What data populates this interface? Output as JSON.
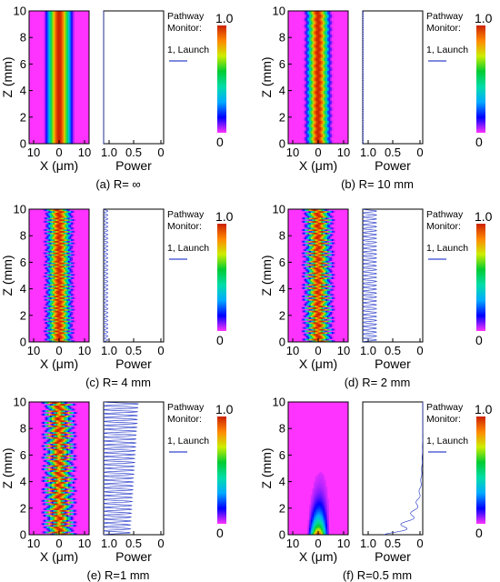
{
  "colors": {
    "pathway_line": "#3344cc",
    "background_field": "#ff33ff",
    "colormap": [
      "#ff33ff",
      "#0000ff",
      "#00aaff",
      "#00ddaa",
      "#00cc33",
      "#ccee00",
      "#ff8800",
      "#cc2200"
    ]
  },
  "chart_data": [
    {
      "type": "heatmap",
      "panel": "a",
      "caption": "(a) R= ∞",
      "bend_radius_mm": null,
      "field_plot": {
        "xlabel": "X (μm)",
        "ylabel": "Z (mm)",
        "xticks": [
          "10",
          "0",
          "10"
        ],
        "xlim": [
          -10,
          10
        ],
        "yticks": [
          "0",
          "2",
          "4",
          "6",
          "8",
          "10"
        ],
        "ylim": [
          0,
          10
        ],
        "mode_half_width_um": 5.5,
        "oscillation_amplitude_um": 0,
        "oscillation_periods": 0,
        "decay_length_mm": null
      },
      "power_plot": {
        "xlabel": "Power",
        "xticks": [
          "1.0",
          "0.5",
          "0"
        ],
        "xlim": [
          1.0,
          0
        ],
        "series": [
          {
            "name": "1, Launch",
            "power_max": 1.0,
            "power_min": 1.0,
            "oscillation_periods": 0,
            "decay_length_mm": null
          }
        ]
      },
      "legend": {
        "title": [
          "Pathway",
          "Monitor:"
        ],
        "entry": "1, Launch"
      },
      "colorbar": {
        "max_label": "1.0",
        "min_label": "0",
        "range": [
          0,
          1
        ]
      }
    },
    {
      "type": "heatmap",
      "panel": "b",
      "caption": "(b) R= 10 mm",
      "bend_radius_mm": 10,
      "field_plot": {
        "xlabel": "X (μm)",
        "ylabel": "Z (mm)",
        "xticks": [
          "10",
          "0",
          "10"
        ],
        "xlim": [
          -10,
          10
        ],
        "yticks": [
          "0",
          "2",
          "4",
          "6",
          "8",
          "10"
        ],
        "ylim": [
          0,
          10
        ],
        "mode_half_width_um": 5.0,
        "oscillation_amplitude_um": 0.3,
        "oscillation_periods": 60,
        "decay_length_mm": null
      },
      "power_plot": {
        "xlabel": "Power",
        "xticks": [
          "1.0",
          "0.5",
          "0"
        ],
        "xlim": [
          1.0,
          0
        ],
        "series": [
          {
            "name": "1, Launch",
            "power_max": 1.0,
            "power_min": 0.99,
            "oscillation_periods": 60,
            "decay_length_mm": null
          }
        ]
      },
      "legend": {
        "title": [
          "Pathway",
          "Monitor:"
        ],
        "entry": "1, Launch"
      },
      "colorbar": {
        "max_label": "1.0",
        "min_label": "0",
        "range": [
          0,
          1
        ]
      }
    },
    {
      "type": "heatmap",
      "panel": "c",
      "caption": "(c) R= 4 mm",
      "bend_radius_mm": 4,
      "field_plot": {
        "xlabel": "X (μm)",
        "ylabel": "Z (mm)",
        "xticks": [
          "10",
          "0",
          "10"
        ],
        "xlim": [
          -10,
          10
        ],
        "yticks": [
          "0",
          "2",
          "4",
          "6",
          "8",
          "10"
        ],
        "ylim": [
          0,
          10
        ],
        "mode_half_width_um": 5.0,
        "oscillation_amplitude_um": 0.8,
        "oscillation_periods": 34,
        "decay_length_mm": null
      },
      "power_plot": {
        "xlabel": "Power",
        "xticks": [
          "1.0",
          "0.5",
          "0"
        ],
        "xlim": [
          1.0,
          0
        ],
        "series": [
          {
            "name": "1, Launch",
            "power_max": 1.0,
            "power_min": 0.93,
            "oscillation_periods": 34,
            "decay_length_mm": null
          }
        ]
      },
      "legend": {
        "title": [
          "Pathway",
          "Monitor:"
        ],
        "entry": "1, Launch"
      },
      "colorbar": {
        "max_label": "1.0",
        "min_label": "0",
        "range": [
          0,
          1
        ]
      }
    },
    {
      "type": "heatmap",
      "panel": "d",
      "caption": "(d) R= 2 mm",
      "bend_radius_mm": 2,
      "field_plot": {
        "xlabel": "X (μm)",
        "ylabel": "Z (mm)",
        "xticks": [
          "10",
          "0",
          "10"
        ],
        "xlim": [
          -10,
          10
        ],
        "yticks": [
          "0",
          "2",
          "4",
          "6",
          "8",
          "10"
        ],
        "ylim": [
          0,
          10
        ],
        "mode_half_width_um": 5.0,
        "oscillation_amplitude_um": 1.2,
        "oscillation_periods": 34,
        "decay_length_mm": null
      },
      "power_plot": {
        "xlabel": "Power",
        "xticks": [
          "1.0",
          "0.5",
          "0"
        ],
        "xlim": [
          1.0,
          0
        ],
        "series": [
          {
            "name": "1, Launch",
            "power_max": 1.0,
            "power_min": 0.77,
            "oscillation_periods": 34,
            "decay_length_mm": null
          }
        ]
      },
      "legend": {
        "title": [
          "Pathway",
          "Monitor:"
        ],
        "entry": "1, Launch"
      },
      "colorbar": {
        "max_label": "1.0",
        "min_label": "0",
        "range": [
          0,
          1
        ]
      }
    },
    {
      "type": "heatmap",
      "panel": "e",
      "caption": "(e) R=1 mm",
      "bend_radius_mm": 1,
      "field_plot": {
        "xlabel": "X (μm)",
        "ylabel": "Z (mm)",
        "xticks": [
          "10",
          "0",
          "10"
        ],
        "xlim": [
          -10,
          10
        ],
        "yticks": [
          "0",
          "2",
          "4",
          "6",
          "8",
          "10"
        ],
        "ylim": [
          0,
          10
        ],
        "mode_half_width_um": 5.0,
        "oscillation_amplitude_um": 1.6,
        "oscillation_periods": 34,
        "decay_length_mm": null
      },
      "power_plot": {
        "xlabel": "Power",
        "xticks": [
          "1.0",
          "0.5",
          "0"
        ],
        "xlim": [
          1.0,
          0
        ],
        "series": [
          {
            "name": "1, Launch",
            "power_max": 1.0,
            "power_min": 0.56,
            "min_power_end": 0.42,
            "oscillation_periods": 34,
            "decay_length_mm": null
          }
        ]
      },
      "legend": {
        "title": [
          "Pathway",
          "Monitor:"
        ],
        "entry": "1, Launch"
      },
      "colorbar": {
        "max_label": "1.0",
        "min_label": "0",
        "range": [
          0,
          1
        ]
      }
    },
    {
      "type": "heatmap",
      "panel": "f",
      "caption": "(f) R=0.5 mm",
      "bend_radius_mm": 0.5,
      "field_plot": {
        "xlabel": "X (μm)",
        "ylabel": "Z (mm)",
        "xticks": [
          "10",
          "0",
          "10"
        ],
        "xlim": [
          -10,
          10
        ],
        "yticks": [
          "0",
          "2",
          "4",
          "6",
          "8",
          "10"
        ],
        "ylim": [
          0,
          10
        ],
        "mode_half_width_um": 4.0,
        "oscillation_amplitude_um": 0.5,
        "oscillation_periods": 0,
        "decay_length_mm": 1.2
      },
      "power_plot": {
        "xlabel": "Power",
        "xticks": [
          "1.0",
          "0.5",
          "0"
        ],
        "xlim": [
          1.0,
          0
        ],
        "series": [
          {
            "name": "1, Launch",
            "power_max": 0.65,
            "power_min": 0.0,
            "oscillation_periods": 12,
            "decay_length_mm": 1.4
          }
        ]
      },
      "legend": {
        "title": [
          "Pathway",
          "Monitor:"
        ],
        "entry": "1, Launch"
      },
      "colorbar": {
        "max_label": "1.0",
        "min_label": "0",
        "range": [
          0,
          1
        ]
      }
    }
  ]
}
